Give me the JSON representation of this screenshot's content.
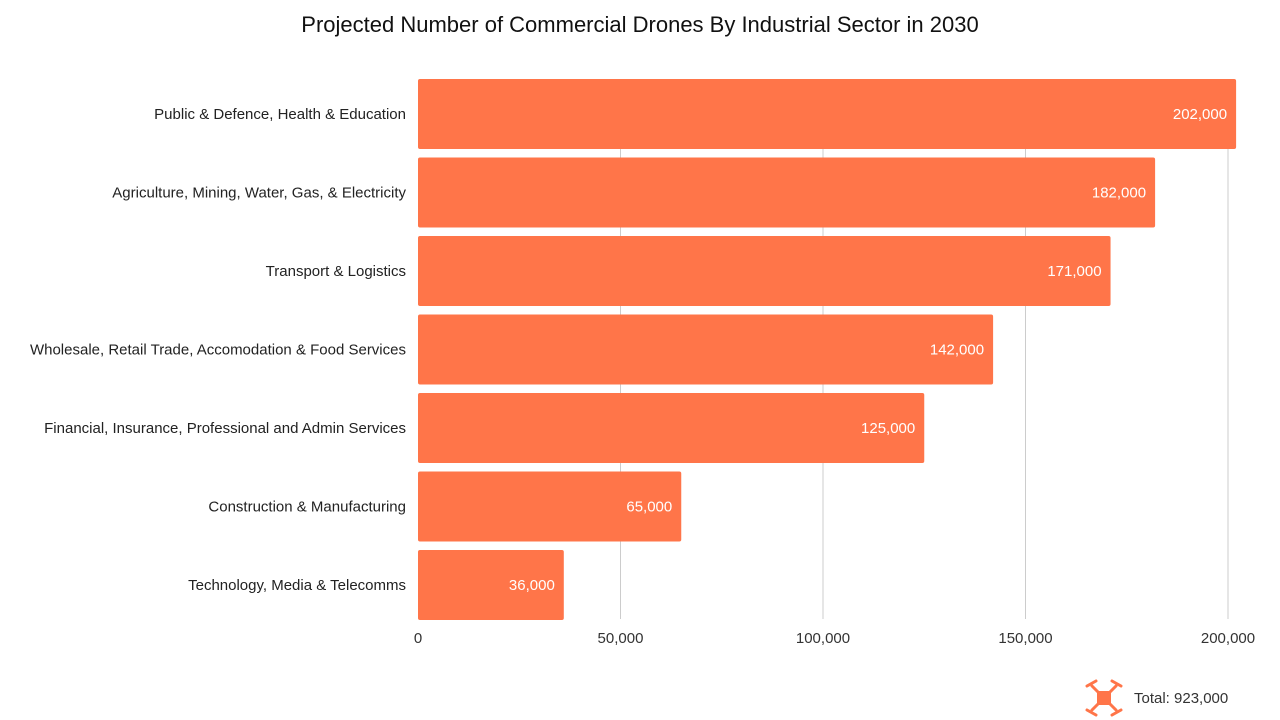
{
  "chart_data": {
    "type": "bar",
    "orientation": "horizontal",
    "title": "Projected Number of Commercial Drones By Industrial Sector in 2030",
    "categories": [
      "Public & Defence, Health & Education",
      "Agriculture, Mining, Water, Gas, & Electricity",
      "Transport & Logistics",
      "Wholesale, Retail Trade, Accomodation & Food Services",
      "Financial, Insurance, Professional and Admin Services",
      "Construction & Manufacturing",
      "Technology, Media & Telecomms"
    ],
    "values": [
      202000,
      182000,
      171000,
      142000,
      125000,
      65000,
      36000
    ],
    "data_labels": [
      "202,000",
      "182,000",
      "171,000",
      "142,000",
      "125,000",
      "65,000",
      "36,000"
    ],
    "xticks": [
      0,
      50000,
      100000,
      150000,
      200000
    ],
    "xtick_labels": [
      "0",
      "50,000",
      "100,000",
      "150,000",
      "200,000"
    ],
    "xlim": [
      0,
      200000
    ],
    "grid": true,
    "bar_color": "#FF7549"
  },
  "footer": {
    "icon": "drone-icon",
    "total_label": "Total: 923,000"
  }
}
